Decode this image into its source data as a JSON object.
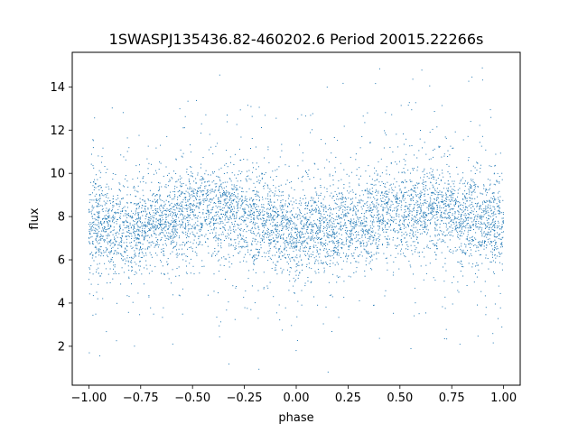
{
  "chart_data": {
    "type": "scatter",
    "title": "1SWASPJ135436.82-460202.6 Period 20015.22266s",
    "xlabel": "phase",
    "ylabel": "flux",
    "xlim": [
      -1.08,
      1.08
    ],
    "ylim": [
      0.2,
      15.6
    ],
    "xticks": [
      -1.0,
      -0.75,
      -0.5,
      -0.25,
      0.0,
      0.25,
      0.5,
      0.75,
      1.0
    ],
    "xtick_labels": [
      "−1.00",
      "−0.75",
      "−0.50",
      "−0.25",
      "0.00",
      "0.25",
      "0.50",
      "0.75",
      "1.00"
    ],
    "yticks": [
      2,
      4,
      6,
      8,
      10,
      12,
      14
    ],
    "ytick_labels": [
      "2",
      "4",
      "6",
      "8",
      "10",
      "12",
      "14"
    ],
    "grid": false,
    "legend": "none",
    "marker_color": "#1f77b4",
    "series": [
      {
        "x": [
          -1.0,
          -0.9,
          -0.8,
          -0.7,
          -0.6,
          -0.5,
          -0.4,
          -0.3,
          -0.2,
          -0.1,
          0.0,
          0.1,
          0.2,
          0.3,
          0.4,
          0.5,
          0.6,
          0.7,
          0.8,
          0.9,
          1.0
        ],
        "y": [
          7.6,
          7.5,
          7.4,
          7.6,
          8.0,
          8.3,
          8.4,
          8.2,
          7.9,
          7.5,
          7.3,
          7.4,
          7.6,
          7.8,
          8.1,
          8.3,
          8.4,
          8.3,
          8.0,
          7.8,
          7.6
        ]
      }
    ]
  }
}
